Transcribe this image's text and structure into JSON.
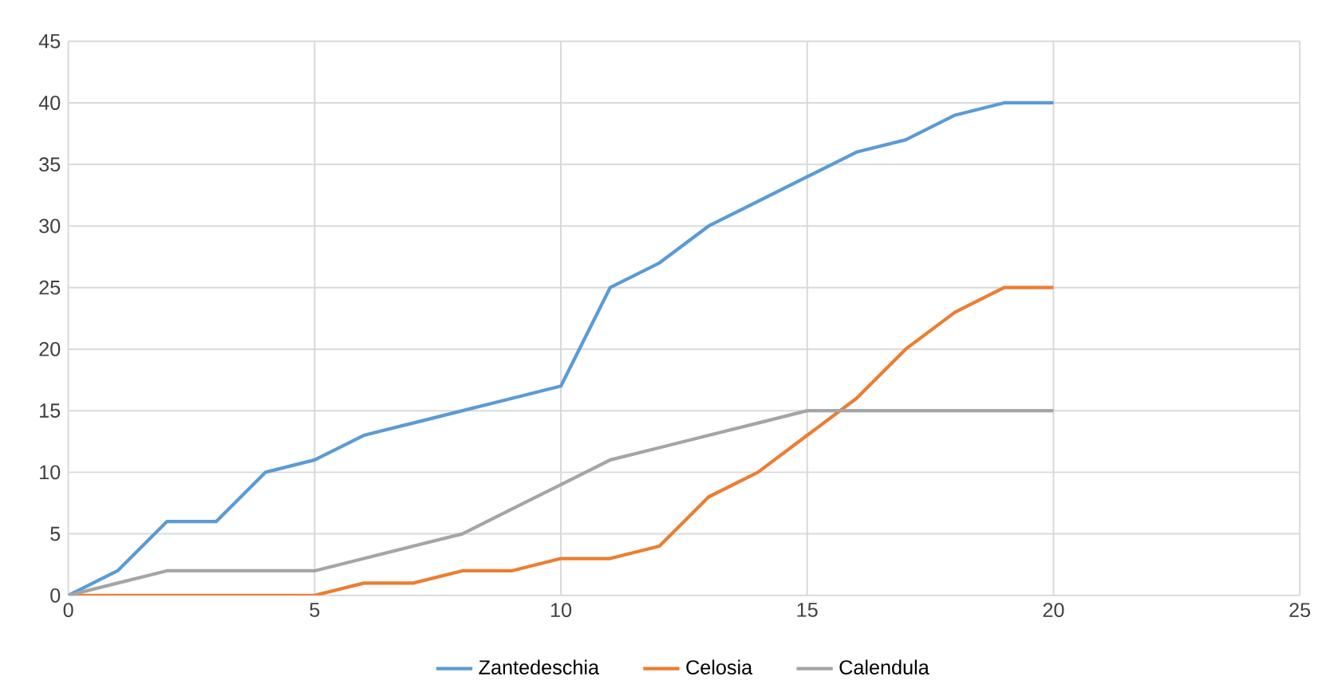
{
  "chart_data": {
    "type": "line",
    "x": [
      0,
      1,
      2,
      3,
      4,
      5,
      6,
      7,
      8,
      9,
      10,
      11,
      12,
      13,
      14,
      15,
      16,
      17,
      18,
      19,
      20
    ],
    "series": [
      {
        "name": "Zantedeschia",
        "color": "#5b9bd5",
        "values": [
          0,
          2,
          6,
          6,
          10,
          11,
          13,
          14,
          15,
          16,
          17,
          25,
          27,
          30,
          32,
          34,
          36,
          37,
          39,
          40,
          40
        ]
      },
      {
        "name": "Celosia",
        "color": "#ed7d31",
        "values": [
          0,
          0,
          0,
          0,
          0,
          0,
          1,
          1,
          2,
          2,
          3,
          3,
          4,
          8,
          10,
          13,
          16,
          20,
          23,
          25,
          25
        ]
      },
      {
        "name": "Calendula",
        "color": "#a5a5a5",
        "values": [
          0,
          1,
          2,
          2,
          2,
          2,
          3,
          4,
          5,
          7,
          9,
          11,
          12,
          13,
          14,
          15,
          15,
          15,
          15,
          15,
          15
        ]
      }
    ],
    "xlim": [
      0,
      25
    ],
    "xticks": [
      0,
      5,
      10,
      15,
      20,
      25
    ],
    "ylim": [
      0,
      45
    ],
    "yticks": [
      0,
      5,
      10,
      15,
      20,
      25,
      30,
      35,
      40,
      45
    ],
    "grid": true,
    "legend": "bottom",
    "marker": "none",
    "line_style": "solid"
  }
}
